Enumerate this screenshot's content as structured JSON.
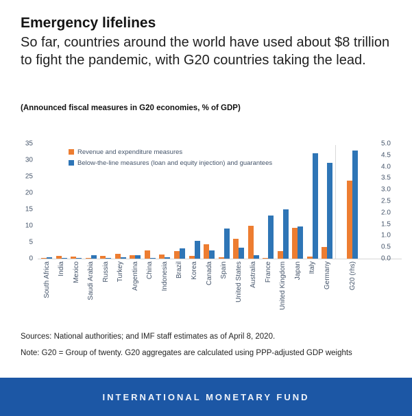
{
  "header": {
    "title": "Emergency lifelines",
    "subtitle": "So far, countries around the world have used about $8 trillion to fight the pandemic, with G20 countries taking the lead.",
    "kicker": "(Announced fiscal measures in G20 economies, % of GDP)"
  },
  "chart_data": {
    "type": "bar",
    "title": "(Announced fiscal measures in G20 economies, % of GDP)",
    "grid": false,
    "legend_position": "top-left",
    "categories": [
      "South Africa",
      "India",
      "Mexico",
      "Saudi Arabia",
      "Russia",
      "Turkey",
      "Argentina",
      "China",
      "Indonesia",
      "Brazil",
      "Korea",
      "Canada",
      "Spain",
      "United States",
      "Australia",
      "France",
      "United Kingdom",
      "Japan",
      "Italy",
      "Germany",
      "G20 (rhs)"
    ],
    "series": [
      {
        "name": "Revenue and expenditure measures",
        "color": "#ED7D31",
        "values": [
          0.1,
          0.8,
          0.7,
          0.2,
          0.8,
          1.4,
          1.0,
          2.5,
          1.2,
          2.3,
          0.8,
          4.4,
          0.5,
          6.1,
          9.9,
          0.2,
          2.3,
          9.3,
          0.6,
          3.6,
          3.4
        ]
      },
      {
        "name": "Below-the-line measures (loan and equity injection) and guarantees",
        "color": "#2E75B6",
        "values": [
          0.5,
          0.1,
          0.2,
          1.1,
          0.3,
          0.5,
          1.0,
          0.3,
          0.4,
          3.2,
          5.5,
          2.5,
          9.2,
          3.4,
          1.1,
          13.2,
          15.0,
          9.8,
          32.0,
          29.1,
          4.7
        ]
      }
    ],
    "left_axis": {
      "label": "",
      "ticks": [
        0,
        5,
        10,
        15,
        20,
        25,
        30,
        35
      ],
      "range": [
        0,
        35
      ]
    },
    "right_axis": {
      "label": "",
      "ticks": [
        "0.0",
        "0.5",
        "1.0",
        "1.5",
        "2.0",
        "2.5",
        "3.0",
        "3.5",
        "4.0",
        "4.5",
        "5.0"
      ],
      "range": [
        0,
        5
      ]
    },
    "rhs_categories": [
      "G20 (rhs)"
    ],
    "separator_after": "Germany"
  },
  "footer": {
    "sources": "Sources: National authorities; and IMF staff estimates as of April 8, 2020.",
    "note": "Note: G20 = Group of twenty. G20 aggregates are calculated using PPP-adjusted GDP weights",
    "band_label": "INTERNATIONAL MONETARY FUND",
    "band_color": "#1C57A5"
  }
}
